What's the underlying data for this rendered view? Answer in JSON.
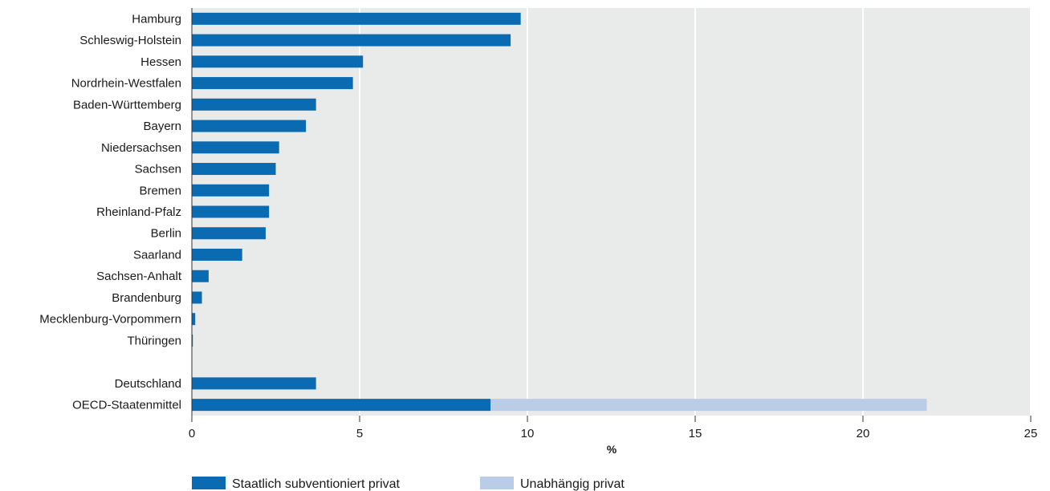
{
  "chart_data": {
    "type": "bar",
    "orientation": "horizontal",
    "stacked": true,
    "title": "",
    "xlabel": "%",
    "ylabel": "",
    "xlim": [
      0,
      25
    ],
    "xticks": [
      0,
      5,
      10,
      15,
      20,
      25
    ],
    "grid": "vertical",
    "legend_position": "bottom",
    "categories": [
      "Hamburg",
      "Schleswig-Holstein",
      "Hessen",
      "Nordrhein-Westfalen",
      "Baden-Württemberg",
      "Bayern",
      "Niedersachsen",
      "Sachsen",
      "Bremen",
      "Rheinland-Pfalz",
      "Berlin",
      "Saarland",
      "Sachsen-Anhalt",
      "Brandenburg",
      "Mecklenburg-Vorpommern",
      "Thüringen",
      "",
      "Deutschland",
      "OECD-Staatenmittel"
    ],
    "series": [
      {
        "name": "Staatlich subventioniert privat",
        "color": "#0a6bb2",
        "values": [
          9.8,
          9.5,
          5.1,
          4.8,
          3.7,
          3.4,
          2.6,
          2.5,
          2.3,
          2.3,
          2.2,
          1.5,
          0.5,
          0.3,
          0.1,
          0.0,
          null,
          3.7,
          8.9
        ]
      },
      {
        "name": "Unabhängig privat",
        "color": "#bacde8",
        "values": [
          0,
          0,
          0,
          0,
          0,
          0,
          0,
          0,
          0,
          0,
          0,
          0,
          0,
          0,
          0,
          0,
          null,
          0,
          13.0
        ]
      }
    ]
  },
  "colors": {
    "plot_background": "#e9eaea",
    "gridline": "#ffffff",
    "axis": "#333333"
  }
}
